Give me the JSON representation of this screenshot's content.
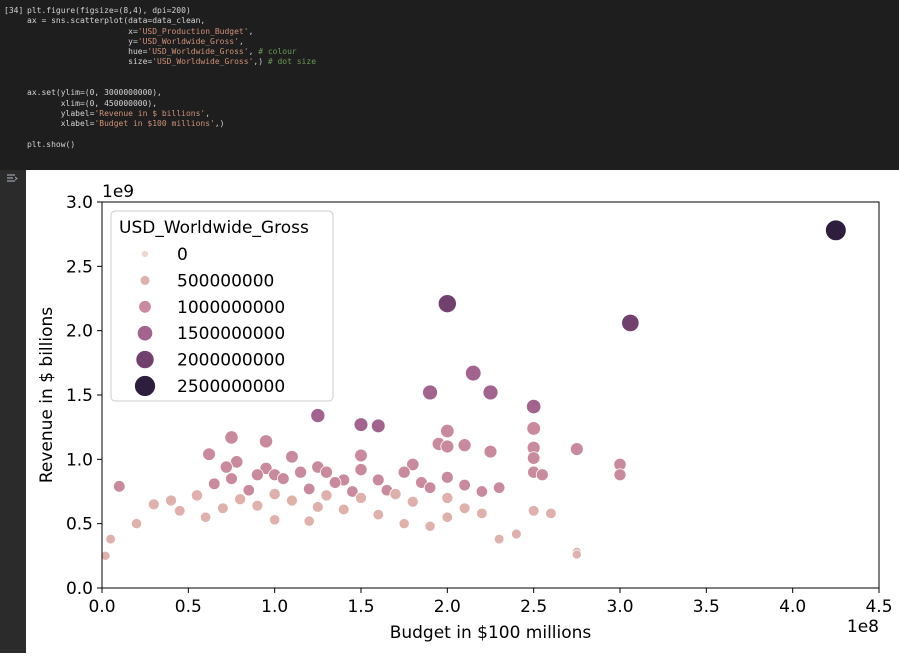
{
  "cell": {
    "exec_count": "[34]",
    "code_lines": [
      [
        [
          "plt.figure(figsize=(8,4), dpi=200)",
          ""
        ]
      ],
      [
        [
          "ax = sns.scatterplot(data=data_clean,",
          ""
        ]
      ],
      [
        [
          "                     x=",
          ""
        ],
        [
          "'USD_Production_Budget'",
          "s"
        ],
        [
          ",",
          ""
        ]
      ],
      [
        [
          "                     y=",
          ""
        ],
        [
          "'USD_Worldwide_Gross'",
          "s"
        ],
        [
          ",",
          ""
        ]
      ],
      [
        [
          "                     hue=",
          ""
        ],
        [
          "'USD_Worldwide_Gross'",
          "s"
        ],
        [
          ", ",
          ""
        ],
        [
          "# colour",
          "c"
        ]
      ],
      [
        [
          "                     size=",
          ""
        ],
        [
          "'USD_Worldwide_Gross'",
          "s"
        ],
        [
          ",) ",
          ""
        ],
        [
          "# dot size",
          "c"
        ]
      ],
      [
        [
          "",
          ""
        ]
      ],
      [
        [
          "",
          ""
        ]
      ],
      [
        [
          "ax.set(ylim=(0, 3000000000),",
          ""
        ]
      ],
      [
        [
          "       xlim=(0, 450000000),",
          ""
        ]
      ],
      [
        [
          "       ylabel=",
          ""
        ],
        [
          "'Revenue in $ billions'",
          "s"
        ],
        [
          ",",
          ""
        ]
      ],
      [
        [
          "       xlabel=",
          ""
        ],
        [
          "'Budget in $100 millions'",
          "s"
        ],
        [
          ",)",
          ""
        ]
      ],
      [
        [
          "",
          ""
        ]
      ],
      [
        [
          "plt.show()",
          ""
        ]
      ]
    ],
    "output_icon": "output-toggle-icon"
  },
  "chart_data": {
    "type": "scatter",
    "title": "",
    "xlabel": "Budget in $100 millions",
    "ylabel": "Revenue in $ billions",
    "x_offset_label": "1e8",
    "y_offset_label": "1e9",
    "xlim": [
      0,
      4.5
    ],
    "ylim": [
      0,
      3.0
    ],
    "xticks": [
      "0.0",
      "0.5",
      "1.0",
      "1.5",
      "2.0",
      "2.5",
      "3.0",
      "3.5",
      "4.0",
      "4.5"
    ],
    "yticks": [
      "0.0",
      "0.5",
      "1.0",
      "1.5",
      "2.0",
      "2.5",
      "3.0"
    ],
    "grid": false,
    "legend": {
      "title": "USD_Worldwide_Gross",
      "position": "top-left",
      "entries": [
        "0",
        "500000000",
        "1000000000",
        "1500000000",
        "2000000000",
        "2500000000"
      ],
      "colors": [
        "#f0d6ce",
        "#e0b0ab",
        "#c98a9d",
        "#a2638e",
        "#71406f",
        "#2d1e3e"
      ]
    },
    "points": [
      [
        4.25,
        2.78
      ],
      [
        2.0,
        2.21
      ],
      [
        3.06,
        2.06
      ],
      [
        2.15,
        1.67
      ],
      [
        2.25,
        1.52
      ],
      [
        1.9,
        1.52
      ],
      [
        2.5,
        1.41
      ],
      [
        1.25,
        1.34
      ],
      [
        1.5,
        1.27
      ],
      [
        1.6,
        1.26
      ],
      [
        2.5,
        1.24
      ],
      [
        2.0,
        1.22
      ],
      [
        0.75,
        1.17
      ],
      [
        0.95,
        1.14
      ],
      [
        1.95,
        1.12
      ],
      [
        2.1,
        1.11
      ],
      [
        2.0,
        1.1
      ],
      [
        2.5,
        1.09
      ],
      [
        2.75,
        1.08
      ],
      [
        0.62,
        1.04
      ],
      [
        2.25,
        1.06
      ],
      [
        1.5,
        1.03
      ],
      [
        2.5,
        1.01
      ],
      [
        1.1,
        1.02
      ],
      [
        0.78,
        0.98
      ],
      [
        0.72,
        0.94
      ],
      [
        1.8,
        0.96
      ],
      [
        0.95,
        0.93
      ],
      [
        1.25,
        0.94
      ],
      [
        3.0,
        0.96
      ],
      [
        1.5,
        0.92
      ],
      [
        1.15,
        0.9
      ],
      [
        0.9,
        0.88
      ],
      [
        1.0,
        0.88
      ],
      [
        1.3,
        0.9
      ],
      [
        1.75,
        0.9
      ],
      [
        2.0,
        0.86
      ],
      [
        2.5,
        0.9
      ],
      [
        2.55,
        0.88
      ],
      [
        3.0,
        0.88
      ],
      [
        0.75,
        0.85
      ],
      [
        1.05,
        0.85
      ],
      [
        1.4,
        0.84
      ],
      [
        0.1,
        0.79
      ],
      [
        0.65,
        0.81
      ],
      [
        1.35,
        0.82
      ],
      [
        1.6,
        0.84
      ],
      [
        1.85,
        0.82
      ],
      [
        2.1,
        0.8
      ],
      [
        2.3,
        0.78
      ],
      [
        0.85,
        0.76
      ],
      [
        1.2,
        0.77
      ],
      [
        1.45,
        0.75
      ],
      [
        1.65,
        0.76
      ],
      [
        1.9,
        0.78
      ],
      [
        2.2,
        0.75
      ],
      [
        0.55,
        0.72
      ],
      [
        1.0,
        0.73
      ],
      [
        1.3,
        0.72
      ],
      [
        1.7,
        0.73
      ],
      [
        2.0,
        0.7
      ],
      [
        0.4,
        0.68
      ],
      [
        0.8,
        0.69
      ],
      [
        1.1,
        0.68
      ],
      [
        1.5,
        0.7
      ],
      [
        1.8,
        0.67
      ],
      [
        0.3,
        0.65
      ],
      [
        0.9,
        0.64
      ],
      [
        1.25,
        0.63
      ],
      [
        2.1,
        0.62
      ],
      [
        0.45,
        0.6
      ],
      [
        0.7,
        0.62
      ],
      [
        1.4,
        0.61
      ],
      [
        2.2,
        0.58
      ],
      [
        2.6,
        0.58
      ],
      [
        1.6,
        0.57
      ],
      [
        2.0,
        0.55
      ],
      [
        1.2,
        0.52
      ],
      [
        0.6,
        0.55
      ],
      [
        0.2,
        0.5
      ],
      [
        1.0,
        0.53
      ],
      [
        1.75,
        0.5
      ],
      [
        2.4,
        0.42
      ],
      [
        2.75,
        0.28
      ],
      [
        2.75,
        0.26
      ],
      [
        1.9,
        0.48
      ],
      [
        2.5,
        0.6
      ],
      [
        2.3,
        0.38
      ],
      [
        0.05,
        0.38
      ],
      [
        0.02,
        0.25
      ]
    ]
  }
}
